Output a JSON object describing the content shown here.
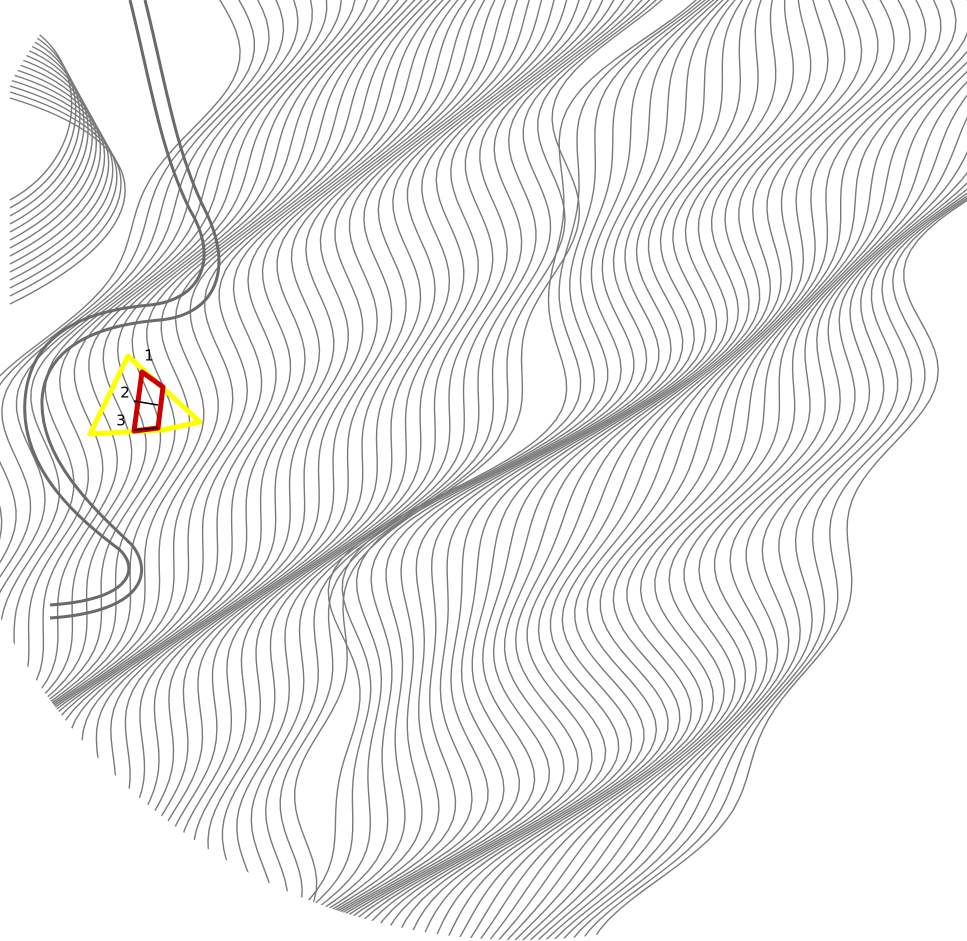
{
  "labels": [
    "1",
    "2",
    "3"
  ]
}
